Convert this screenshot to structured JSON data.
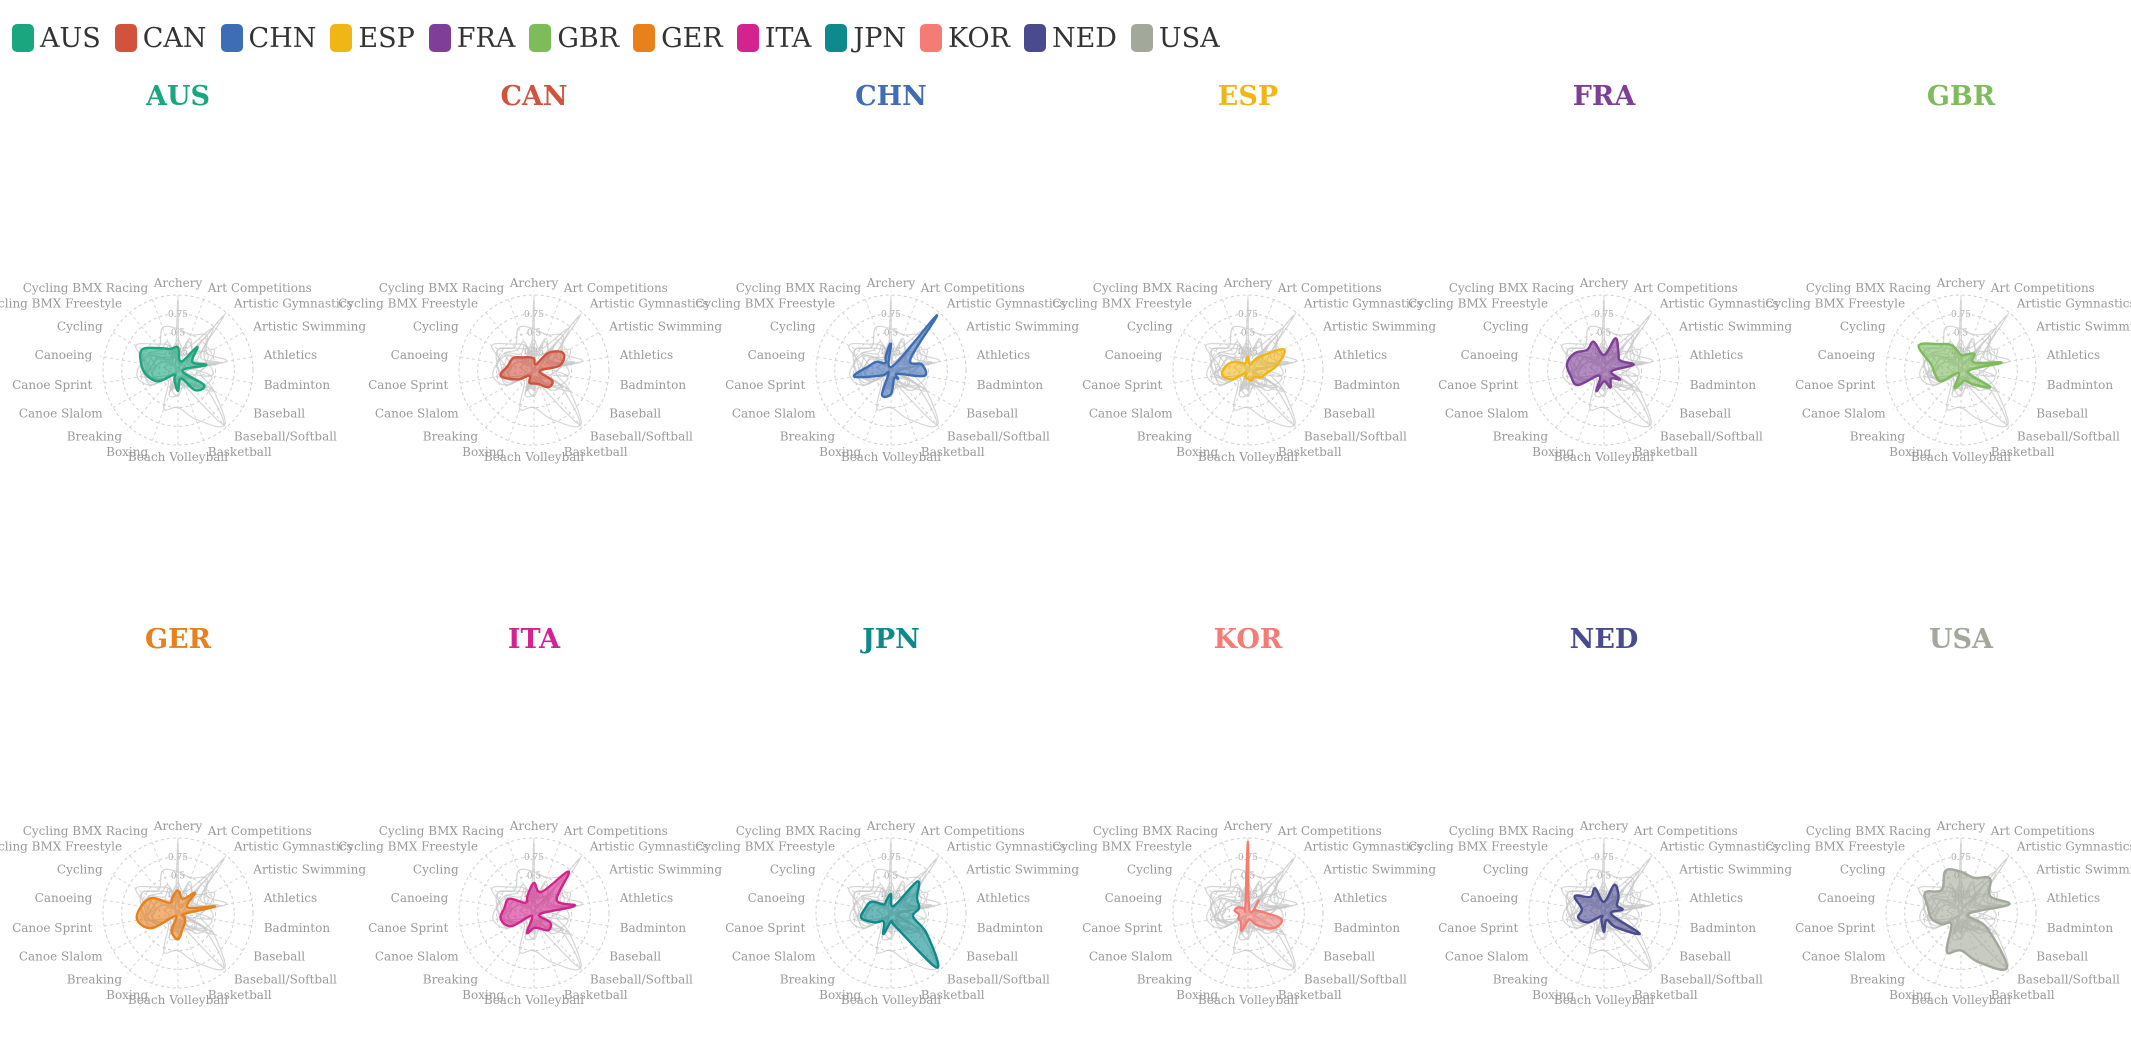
{
  "colors": {
    "AUS": "#1aa67f",
    "CAN": "#d2533d",
    "CHN": "#3f6db5",
    "ESP": "#f0b616",
    "FRA": "#7f3f98",
    "GBR": "#7dbb5b",
    "GER": "#e8801c",
    "ITA": "#d4238e",
    "JPN": "#0e8a8c",
    "KOR": "#f47c74",
    "NED": "#4a4a8f",
    "USA": "#a2a89a"
  },
  "legend": [
    "AUS",
    "CAN",
    "CHN",
    "ESP",
    "FRA",
    "GBR",
    "GER",
    "ITA",
    "JPN",
    "KOR",
    "NED",
    "USA"
  ],
  "chart_data": {
    "type": "radar",
    "layout": "small-multiples",
    "axes": [
      "Archery",
      "Art Competitions",
      "Artistic Gymnastics",
      "Artistic Swimming",
      "Athletics",
      "Badminton",
      "Baseball",
      "Baseball/Softball",
      "Basketball",
      "Beach Volleyball",
      "Boxing",
      "Breaking",
      "Canoe Slalom",
      "Canoe Sprint",
      "Canoeing",
      "Cycling",
      "Cycling BMX Freestyle",
      "Cycling BMX Racing"
    ],
    "ticks": [
      "0.25",
      "0.5",
      "0.75"
    ],
    "rmax": 1.0,
    "series": [
      {
        "name": "AUS",
        "values": [
          0.3,
          0.12,
          0.4,
          0.22,
          0.38,
          0.06,
          0.4,
          0.35,
          0.12,
          0.28,
          0.14,
          0.08,
          0.3,
          0.42,
          0.5,
          0.55,
          0.38,
          0.3
        ]
      },
      {
        "name": "CAN",
        "values": [
          0.15,
          0.08,
          0.3,
          0.45,
          0.35,
          0.08,
          0.28,
          0.3,
          0.2,
          0.18,
          0.18,
          0.1,
          0.25,
          0.45,
          0.35,
          0.32,
          0.22,
          0.18
        ]
      },
      {
        "name": "CHN",
        "values": [
          0.35,
          0.05,
          0.95,
          0.3,
          0.42,
          0.45,
          0.1,
          0.15,
          0.12,
          0.32,
          0.35,
          0.05,
          0.15,
          0.5,
          0.3,
          0.22,
          0.12,
          0.2
        ]
      },
      {
        "name": "ESP",
        "values": [
          0.18,
          0.08,
          0.22,
          0.55,
          0.4,
          0.25,
          0.2,
          0.12,
          0.15,
          0.12,
          0.1,
          0.05,
          0.25,
          0.35,
          0.3,
          0.22,
          0.12,
          0.1
        ]
      },
      {
        "name": "FRA",
        "values": [
          0.2,
          0.45,
          0.3,
          0.25,
          0.4,
          0.1,
          0.25,
          0.15,
          0.25,
          0.15,
          0.3,
          0.1,
          0.4,
          0.45,
          0.5,
          0.45,
          0.35,
          0.4
        ]
      },
      {
        "name": "GBR",
        "values": [
          0.2,
          0.22,
          0.28,
          0.2,
          0.55,
          0.1,
          0.45,
          0.25,
          0.15,
          0.18,
          0.25,
          0.05,
          0.3,
          0.35,
          0.4,
          0.65,
          0.45,
          0.35
        ]
      },
      {
        "name": "GER",
        "values": [
          0.3,
          0.2,
          0.35,
          0.15,
          0.5,
          0.08,
          0.1,
          0.15,
          0.2,
          0.35,
          0.25,
          0.05,
          0.4,
          0.55,
          0.5,
          0.4,
          0.18,
          0.22
        ]
      },
      {
        "name": "ITA",
        "values": [
          0.4,
          0.3,
          0.72,
          0.35,
          0.55,
          0.08,
          0.25,
          0.3,
          0.22,
          0.2,
          0.28,
          0.05,
          0.35,
          0.45,
          0.4,
          0.38,
          0.18,
          0.25
        ]
      },
      {
        "name": "JPN",
        "values": [
          0.25,
          0.1,
          0.55,
          0.4,
          0.38,
          0.3,
          0.55,
          0.95,
          0.2,
          0.12,
          0.3,
          0.15,
          0.25,
          0.4,
          0.35,
          0.3,
          0.15,
          0.18
        ]
      },
      {
        "name": "KOR",
        "values": [
          0.95,
          0.05,
          0.22,
          0.1,
          0.15,
          0.45,
          0.4,
          0.22,
          0.1,
          0.1,
          0.25,
          0.15,
          0.15,
          0.12,
          0.18,
          0.15,
          0.08,
          0.1
        ]
      },
      {
        "name": "NED",
        "values": [
          0.15,
          0.4,
          0.3,
          0.2,
          0.25,
          0.1,
          0.55,
          0.25,
          0.1,
          0.25,
          0.1,
          0.05,
          0.25,
          0.35,
          0.3,
          0.45,
          0.28,
          0.35
        ]
      },
      {
        "name": "USA",
        "values": [
          0.55,
          0.5,
          0.6,
          0.45,
          0.65,
          0.1,
          0.4,
          0.95,
          0.7,
          0.5,
          0.55,
          0.2,
          0.3,
          0.4,
          0.45,
          0.55,
          0.4,
          0.6
        ]
      }
    ]
  }
}
